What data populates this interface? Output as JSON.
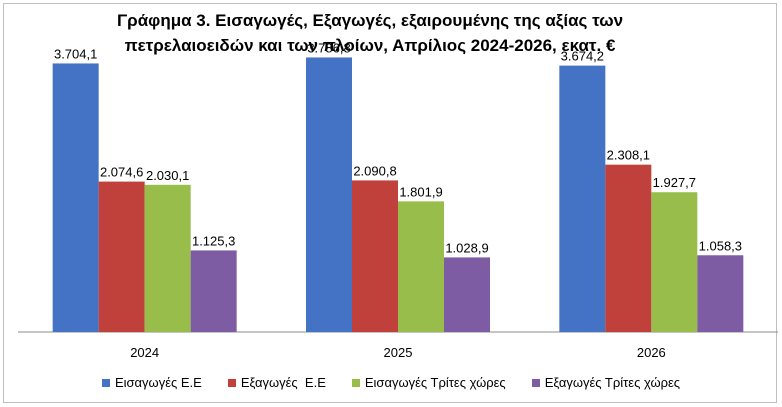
{
  "chart_data": {
    "type": "bar",
    "title_line1": "Γράφημα 3. Εισαγωγές, Εξαγωγές, εξαιρουμένης της αξίας των",
    "title_line2": "πετρελαιοειδών και των πλοίων, Απρίλιος 2024-2026, εκατ. €",
    "categories": [
      "2024",
      "2025",
      "2026"
    ],
    "series": [
      {
        "name": "Εισαγωγές Ε.Ε",
        "color": "#4472c4",
        "values": [
          3704.1,
          3786.8,
          3674.2
        ],
        "labels": [
          "3.704,1",
          "3.786,8",
          "3.674,2"
        ]
      },
      {
        "name": "Εξαγωγές  Ε.Ε",
        "color": "#c0403c",
        "values": [
          2074.6,
          2090.8,
          2308.1
        ],
        "labels": [
          "2.074,6",
          "2.090,8",
          "2.308,1"
        ]
      },
      {
        "name": "Εισαγωγές Τρίτες χώρες",
        "color": "#98bd4a",
        "values": [
          2030.1,
          1801.9,
          1927.7
        ],
        "labels": [
          "2.030,1",
          "1.801,9",
          "1.927,7"
        ]
      },
      {
        "name": "Εξαγωγές Τρίτες χώρες",
        "color": "#7d5ca3",
        "values": [
          1125.3,
          1028.9,
          1058.3
        ],
        "labels": [
          "1.125,3",
          "1.028,9",
          "1.058,3"
        ]
      }
    ],
    "ylim": [
      0,
      4000
    ],
    "legend_position": "bottom",
    "grid": false
  }
}
